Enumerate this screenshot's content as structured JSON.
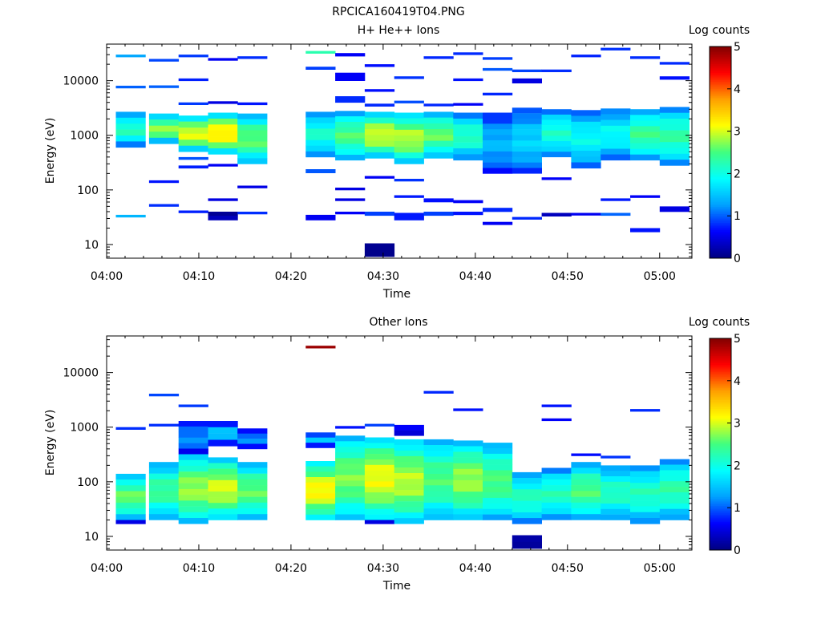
{
  "figure": {
    "title": "RPCICA160419T04.PNG"
  },
  "colors": {
    "scale": [
      "#000080",
      "#0000ff",
      "#00a0ff",
      "#00ffff",
      "#40ff80",
      "#ffff00",
      "#ffa000",
      "#ff0000",
      "#800000"
    ]
  },
  "chart_data": [
    {
      "type": "heatmap",
      "title": "H+ He++ Ions",
      "xlabel": "Time",
      "ylabel": "Energy (eV)",
      "colorbar_label": "Log counts",
      "colorbar_ticks": [
        "0",
        "1",
        "2",
        "3",
        "4",
        "5"
      ],
      "x_ticks": [
        "04:00",
        "04:10",
        "04:20",
        "04:30",
        "04:40",
        "04:50",
        "05:00"
      ],
      "y_ticks": [
        "10",
        "100",
        "1000",
        "10000"
      ],
      "xlim_minutes": [
        0,
        63.5
      ],
      "ylim_log10": [
        0.75,
        4.67
      ],
      "clim": [
        0,
        5
      ],
      "grid": false,
      "cells": [
        [
          1,
          30000,
          29000,
          1.2
        ],
        [
          1,
          8100,
          7800,
          0.9
        ],
        [
          1,
          2700,
          600,
          2.2
        ],
        [
          1,
          35,
          33,
          1.3
        ],
        [
          4.6,
          25000,
          24000,
          0.8
        ],
        [
          4.6,
          8200,
          7800,
          0.9
        ],
        [
          4.6,
          2500,
          700,
          2.8
        ],
        [
          4.6,
          150,
          140,
          0.6
        ],
        [
          4.6,
          55,
          52,
          0.7
        ],
        [
          7.8,
          30000,
          28500,
          0.8
        ],
        [
          7.8,
          11000,
          10400,
          0.7
        ],
        [
          7.8,
          4000,
          3700,
          0.8
        ],
        [
          7.8,
          2300,
          500,
          3.1
        ],
        [
          7.8,
          400,
          360,
          0.9
        ],
        [
          7.8,
          280,
          250,
          0.7
        ],
        [
          7.8,
          42,
          38,
          0.7
        ],
        [
          11,
          26000,
          24500,
          0.7
        ],
        [
          11,
          4200,
          3900,
          0.6
        ],
        [
          11,
          2600,
          450,
          3.3
        ],
        [
          11,
          300,
          280,
          0.7
        ],
        [
          11,
          70,
          64,
          0.6
        ],
        [
          11,
          40,
          28,
          0.4
        ],
        [
          14.2,
          28000,
          26500,
          0.8
        ],
        [
          14.2,
          4000,
          3600,
          0.7
        ],
        [
          14.2,
          2500,
          300,
          2.6
        ],
        [
          14.2,
          120,
          110,
          0.5
        ],
        [
          14.2,
          40,
          37,
          0.8
        ],
        [
          21.6,
          35000,
          32000,
          2.2
        ],
        [
          21.6,
          18000,
          16000,
          0.8
        ],
        [
          21.6,
          2700,
          400,
          2.1
        ],
        [
          21.6,
          240,
          205,
          0.9
        ],
        [
          21.6,
          35,
          28,
          0.5
        ],
        [
          24.8,
          32000,
          28000,
          0.7
        ],
        [
          24.8,
          14000,
          10000,
          0.7
        ],
        [
          24.8,
          5200,
          4000,
          0.9
        ],
        [
          24.8,
          2800,
          350,
          2.5
        ],
        [
          24.8,
          110,
          100,
          0.6
        ],
        [
          24.8,
          70,
          65,
          0.6
        ],
        [
          24.8,
          40,
          37,
          0.7
        ],
        [
          28,
          20000,
          18000,
          0.7
        ],
        [
          28,
          7000,
          6500,
          0.7
        ],
        [
          28,
          3800,
          3400,
          0.8
        ],
        [
          28,
          2700,
          380,
          3.0
        ],
        [
          28,
          180,
          165,
          0.6
        ],
        [
          28,
          40,
          34,
          0.9
        ],
        [
          28,
          10.5,
          6,
          0.2
        ],
        [
          31.2,
          12000,
          11000,
          0.7
        ],
        [
          31.2,
          4300,
          4000,
          0.8
        ],
        [
          31.2,
          2600,
          300,
          2.9
        ],
        [
          31.2,
          160,
          150,
          0.7
        ],
        [
          31.2,
          80,
          74,
          0.6
        ],
        [
          31.2,
          38,
          28,
          0.6
        ],
        [
          34.4,
          28000,
          26500,
          0.8
        ],
        [
          34.4,
          3800,
          3500,
          0.8
        ],
        [
          34.4,
          2700,
          380,
          2.6
        ],
        [
          34.4,
          70,
          60,
          0.7
        ],
        [
          34.4,
          40,
          34,
          0.9
        ],
        [
          37.6,
          33000,
          31000,
          0.9
        ],
        [
          37.6,
          11000,
          10000,
          0.8
        ],
        [
          37.6,
          3900,
          3600,
          0.7
        ],
        [
          37.6,
          2600,
          350,
          2.2
        ],
        [
          37.6,
          65,
          58,
          0.7
        ],
        [
          37.6,
          40,
          35,
          0.8
        ],
        [
          40.8,
          27000,
          25500,
          0.8
        ],
        [
          40.8,
          17000,
          16000,
          0.9
        ],
        [
          40.8,
          6000,
          5600,
          0.7
        ],
        [
          40.8,
          2600,
          200,
          1.4
        ],
        [
          40.8,
          47,
          40,
          0.7
        ],
        [
          40.8,
          26,
          23,
          0.5
        ],
        [
          44,
          16000,
          14500,
          0.8
        ],
        [
          44,
          11000,
          9000,
          0.4
        ],
        [
          44,
          3200,
          200,
          1.6
        ],
        [
          44,
          32,
          29,
          0.7
        ],
        [
          47.2,
          16000,
          15000,
          0.9
        ],
        [
          47.2,
          3000,
          400,
          2.1
        ],
        [
          47.2,
          170,
          160,
          0.7
        ],
        [
          47.2,
          38,
          33,
          0.4
        ],
        [
          50.4,
          30000,
          28000,
          0.8
        ],
        [
          50.4,
          2900,
          250,
          1.9
        ],
        [
          50.4,
          38,
          35,
          0.6
        ],
        [
          53.6,
          40000,
          38000,
          0.7
        ],
        [
          53.6,
          3100,
          350,
          1.9
        ],
        [
          53.6,
          70,
          64,
          0.6
        ],
        [
          53.6,
          38,
          34,
          0.9
        ],
        [
          56.8,
          28000,
          26000,
          0.8
        ],
        [
          56.8,
          3000,
          350,
          2.4
        ],
        [
          56.8,
          20,
          17,
          0.7
        ],
        [
          56.8,
          80,
          76,
          0.6
        ],
        [
          60,
          22000,
          20500,
          0.9
        ],
        [
          60,
          12000,
          10500,
          0.8
        ],
        [
          60,
          3300,
          280,
          2.3
        ],
        [
          60,
          50,
          40,
          0.6
        ]
      ]
    },
    {
      "type": "heatmap",
      "title": "Other Ions",
      "xlabel": "Time",
      "ylabel": "Energy (eV)",
      "colorbar_label": "Log counts",
      "colorbar_ticks": [
        "0",
        "1",
        "2",
        "3",
        "4",
        "5"
      ],
      "x_ticks": [
        "04:00",
        "04:10",
        "04:20",
        "04:30",
        "04:40",
        "04:50",
        "05:00"
      ],
      "y_ticks": [
        "10",
        "100",
        "1000",
        "10000"
      ],
      "xlim_minutes": [
        0,
        63.5
      ],
      "ylim_log10": [
        0.75,
        4.67
      ],
      "clim": [
        0,
        5
      ],
      "grid": false,
      "cells": [
        [
          1,
          1000,
          950,
          0.7
        ],
        [
          1,
          140,
          20,
          2.6
        ],
        [
          1,
          20,
          17,
          0.4
        ],
        [
          4.6,
          4100,
          3900,
          0.8
        ],
        [
          4.6,
          1150,
          1100,
          0.7
        ],
        [
          4.6,
          230,
          20,
          2.4
        ],
        [
          7.8,
          2600,
          2400,
          0.8
        ],
        [
          7.8,
          1300,
          320,
          1.2
        ],
        [
          7.8,
          320,
          17,
          2.8
        ],
        [
          11,
          1300,
          450,
          1.5
        ],
        [
          11,
          280,
          20,
          3.0
        ],
        [
          14.2,
          950,
          400,
          1.2
        ],
        [
          14.2,
          230,
          20,
          2.6
        ],
        [
          21.6,
          31000,
          29000,
          4.8
        ],
        [
          21.6,
          800,
          420,
          1.5
        ],
        [
          21.6,
          240,
          20,
          3.2
        ],
        [
          24.8,
          1050,
          1000,
          0.8
        ],
        [
          24.8,
          700,
          20,
          2.7
        ],
        [
          28,
          1150,
          1080,
          0.9
        ],
        [
          28,
          650,
          20,
          3.1
        ],
        [
          28,
          20,
          17,
          0.5
        ],
        [
          31.2,
          1100,
          700,
          0.9
        ],
        [
          31.2,
          600,
          17,
          2.9
        ],
        [
          34.4,
          4600,
          4300,
          0.8
        ],
        [
          34.4,
          600,
          20,
          2.5
        ],
        [
          37.6,
          2200,
          2050,
          0.8
        ],
        [
          37.6,
          570,
          20,
          2.8
        ],
        [
          40.8,
          520,
          20,
          2.5
        ],
        [
          44,
          150,
          17,
          2.2
        ],
        [
          44,
          10.5,
          6,
          0.2
        ],
        [
          47.2,
          2600,
          2400,
          0.8
        ],
        [
          47.2,
          1450,
          1380,
          0.7
        ],
        [
          47.2,
          180,
          20,
          2.2
        ],
        [
          50.4,
          330,
          310,
          0.7
        ],
        [
          50.4,
          230,
          20,
          2.5
        ],
        [
          53.6,
          300,
          280,
          0.7
        ],
        [
          53.6,
          200,
          20,
          2.2
        ],
        [
          56.8,
          2150,
          1950,
          0.8
        ],
        [
          56.8,
          200,
          17,
          2.2
        ],
        [
          60,
          260,
          20,
          2.3
        ]
      ]
    }
  ]
}
